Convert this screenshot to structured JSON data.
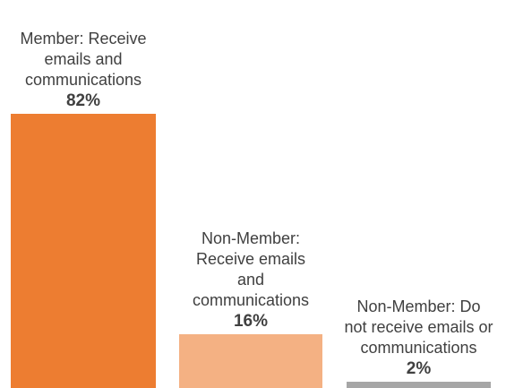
{
  "chart_data": {
    "type": "bar",
    "categories": [
      "Member: Receive emails and communications",
      "Non-Member: Receive emails and communications",
      "Non-Member: Do not receive emails or communications"
    ],
    "values": [
      82,
      16,
      2
    ],
    "value_labels": [
      "82%",
      "16%",
      "2%"
    ],
    "colors": [
      "#ED7D31",
      "#F4B183",
      "#A6A6A6"
    ]
  }
}
